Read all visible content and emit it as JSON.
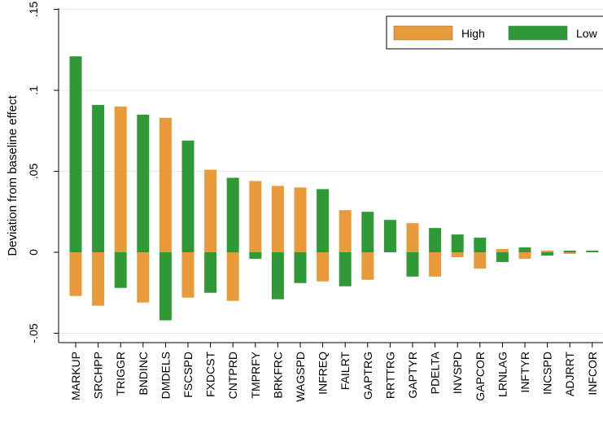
{
  "chart_data": {
    "type": "bar",
    "ylabel": "Deviation from baseline effect",
    "xlabel": "",
    "ylim": [
      -0.055,
      0.15
    ],
    "yticks": [
      -0.05,
      0,
      0.05,
      0.1,
      0.15
    ],
    "ytick_labels": [
      "-.05",
      "0",
      ".05",
      ".1",
      ".15"
    ],
    "grid": true,
    "legend_position": "top-right",
    "categories": [
      "MARKUP",
      "SRCHPP",
      "TRIGGR",
      "BNDINC",
      "DMDELS",
      "FSCSPD",
      "FXDCST",
      "CNTPRD",
      "TMPRFY",
      "BRKFRC",
      "WAGSPD",
      "INFREQ",
      "FAILRT",
      "GAPTRG",
      "RRTTRG",
      "GAPTYR",
      "PDELTA",
      "INVSPD",
      "GAPCOR",
      "LRNLAG",
      "INFTYR",
      "INCSPD",
      "ADJRRT",
      "INFCOR"
    ],
    "series": [
      {
        "name": "High",
        "color": "#e99a3a",
        "values": [
          -0.027,
          -0.033,
          0.09,
          -0.031,
          0.083,
          -0.028,
          0.051,
          -0.03,
          0.044,
          0.041,
          0.04,
          -0.018,
          0.026,
          -0.017,
          0.017,
          0.018,
          -0.015,
          -0.003,
          -0.01,
          0.002,
          -0.004,
          0.001,
          -0.001,
          0.0
        ]
      },
      {
        "name": "Low",
        "color": "#2f9936",
        "values": [
          0.121,
          0.091,
          -0.022,
          0.085,
          -0.042,
          0.069,
          -0.025,
          0.046,
          -0.004,
          -0.029,
          -0.019,
          0.039,
          -0.021,
          0.025,
          0.02,
          -0.015,
          0.015,
          0.011,
          0.009,
          -0.006,
          0.003,
          -0.002,
          0.001,
          0.001
        ]
      }
    ]
  }
}
